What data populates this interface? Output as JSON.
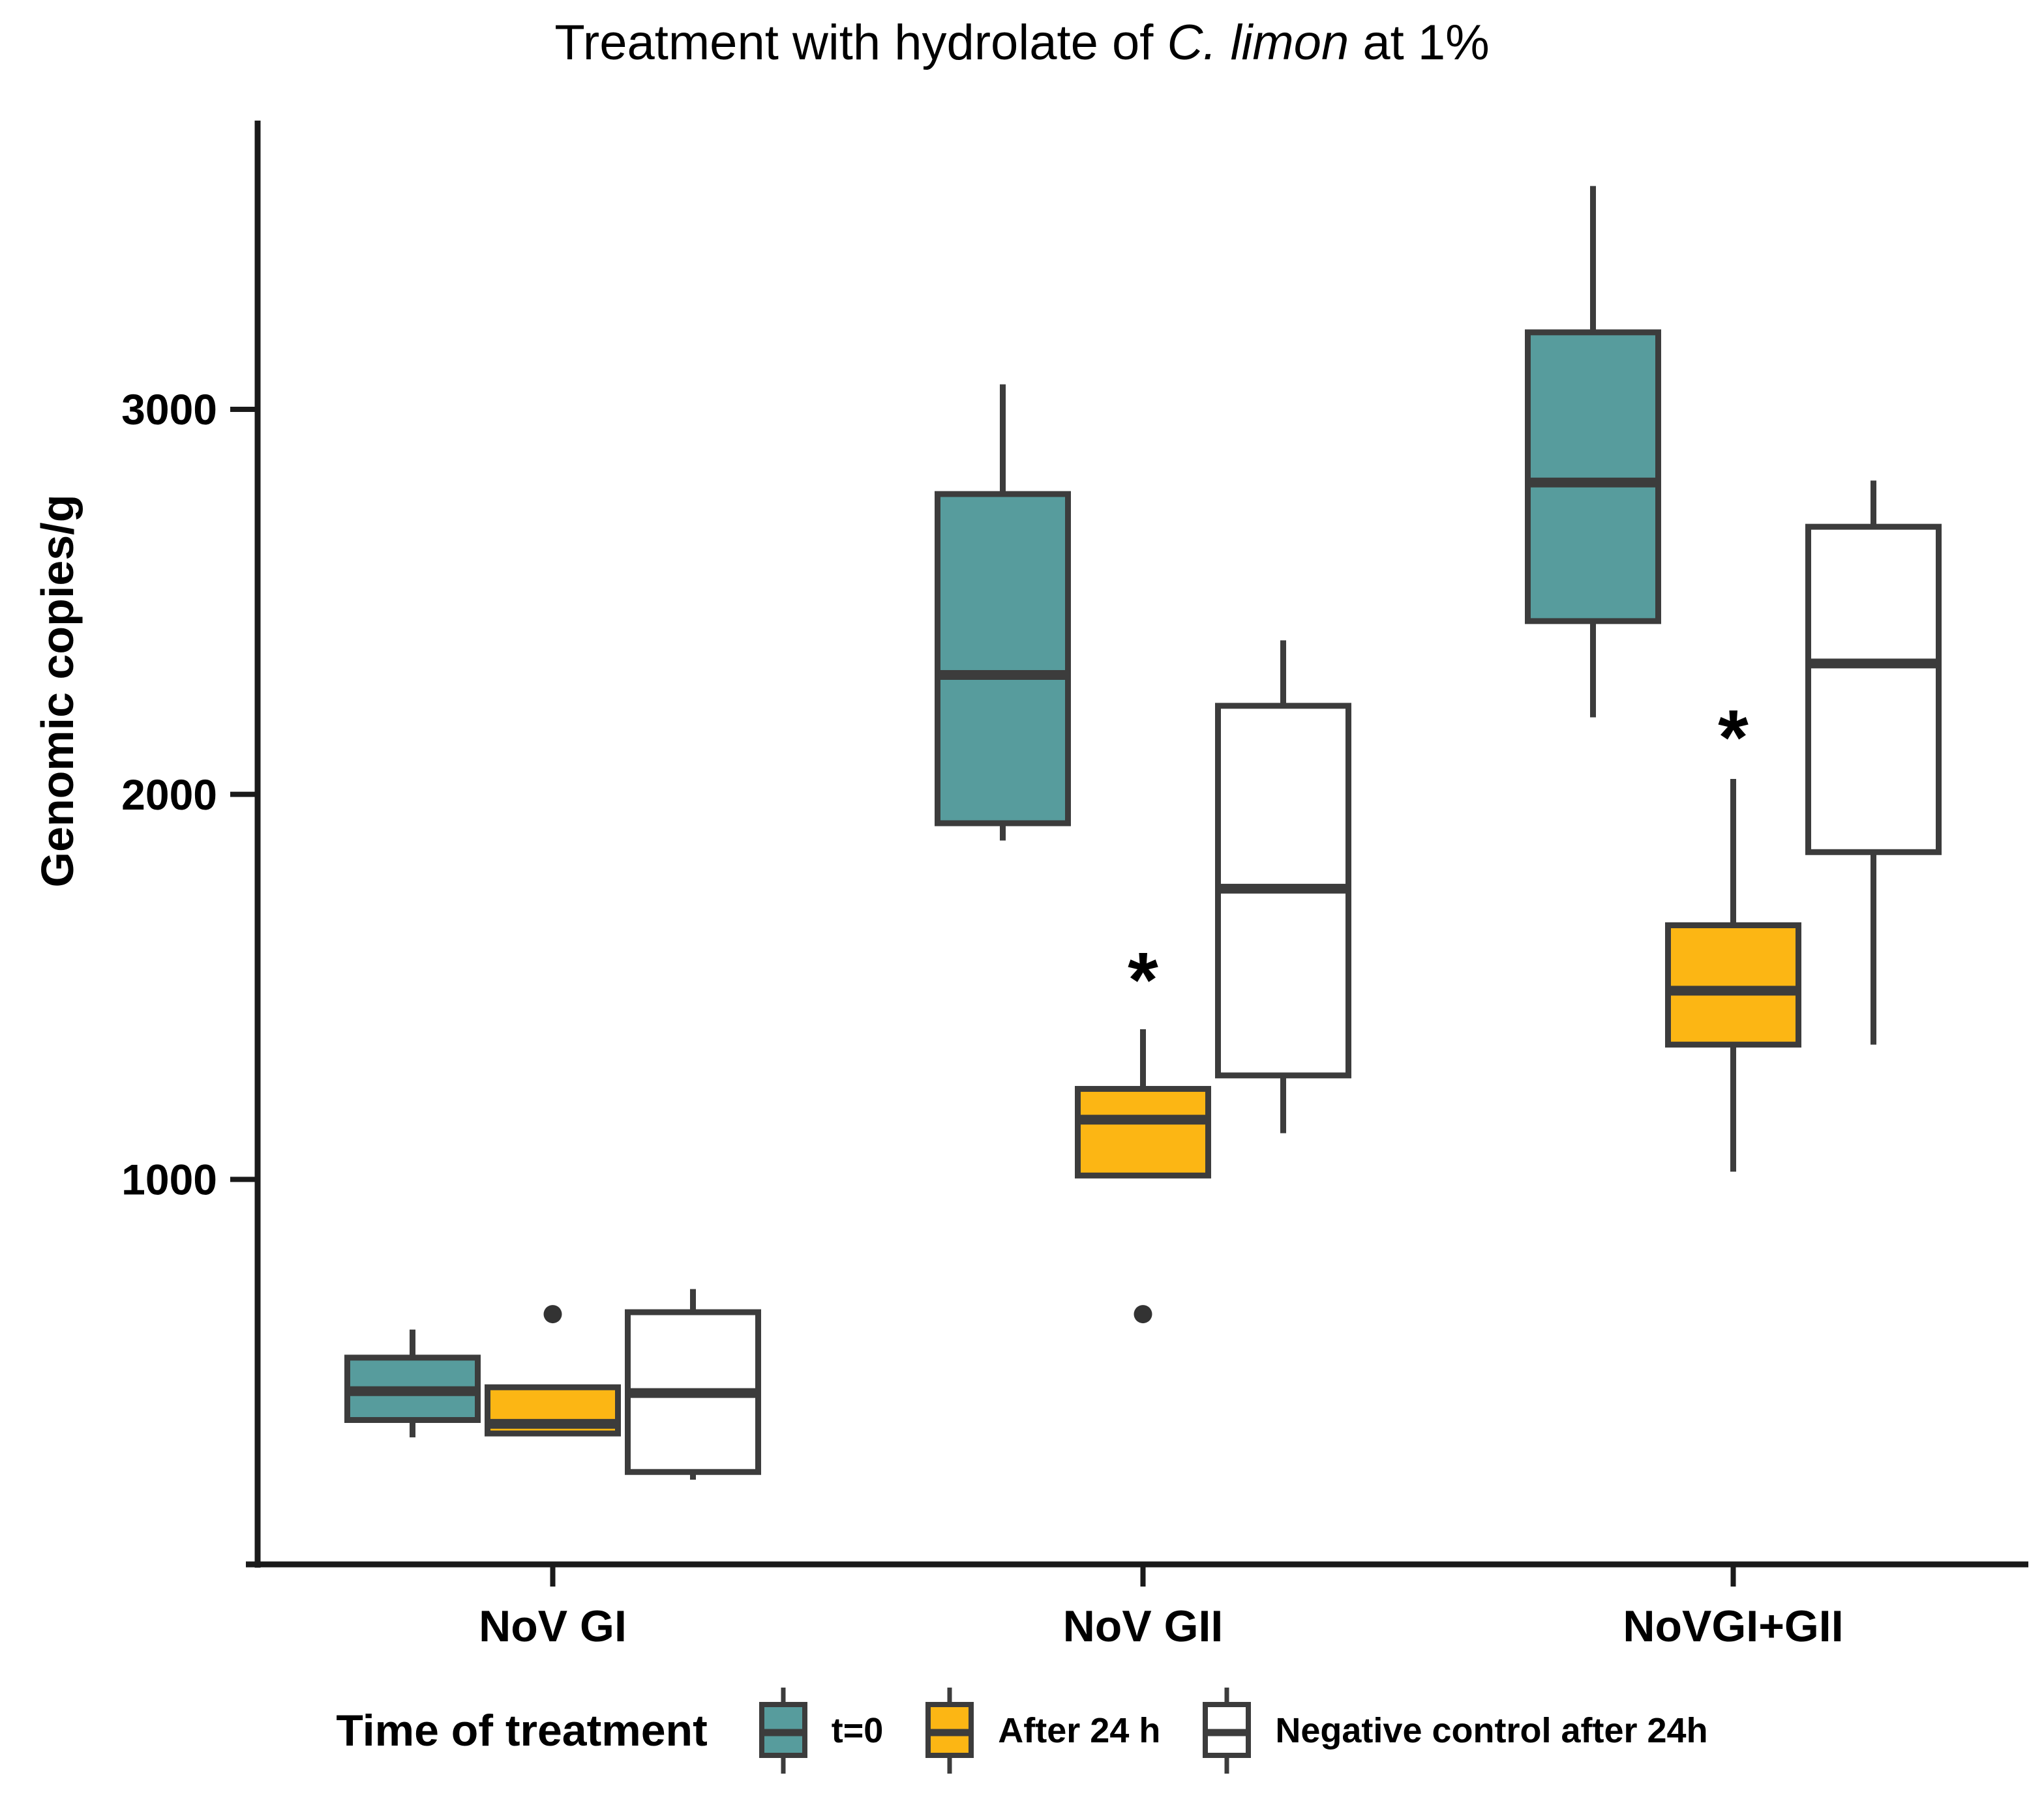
{
  "title": {
    "prefix": "Treatment with hydrolate of ",
    "italic": "C. limon",
    "suffix": " at 1%"
  },
  "y_axis": {
    "label": "Genomic copies/g",
    "ticks": [
      1000,
      2000,
      3000
    ]
  },
  "x_axis": {
    "categories": [
      "NoV GI",
      "NoV GII",
      "NoVGI+GII"
    ]
  },
  "legend": {
    "title": "Time of treatment",
    "entries": [
      {
        "label": "t=0",
        "color": "#579c9d"
      },
      {
        "label": "After 24 h",
        "color": "#fcb614"
      },
      {
        "label": "Negative control after 24h",
        "color": "#ffffff"
      }
    ]
  },
  "colors": {
    "teal": "#579c9d",
    "orange": "#fcb614",
    "white": "#ffffff",
    "box_border": "#3c3c3c",
    "axis": "#1a1a1a",
    "outlier": "#333333"
  },
  "chart_data": {
    "type": "boxplot",
    "title": "Treatment with hydrolate of C. limon at 1%",
    "ylabel": "Genomic copies/g",
    "xlabel": "",
    "ylim": [
      0,
      3750
    ],
    "y_ticks": [
      1000,
      2000,
      3000
    ],
    "grid": false,
    "legend_position": "bottom",
    "categories": [
      "NoV GI",
      "NoV GII",
      "NoVGI+GII"
    ],
    "series": [
      {
        "name": "t=0",
        "color": "#579c9d",
        "boxes": [
          {
            "category": "NoV GI",
            "whisker_low": 330,
            "q1": 375,
            "median": 450,
            "q3": 537,
            "whisker_high": 610,
            "outliers": []
          },
          {
            "category": "NoV GII",
            "whisker_low": 1880,
            "q1": 1925,
            "median": 2310,
            "q3": 2780,
            "whisker_high": 3065,
            "outliers": []
          },
          {
            "category": "NoVGI+GII",
            "whisker_low": 2200,
            "q1": 2450,
            "median": 2810,
            "q3": 3200,
            "whisker_high": 3580,
            "outliers": []
          }
        ]
      },
      {
        "name": "After 24 h",
        "color": "#fcb614",
        "boxes": [
          {
            "category": "NoV GI",
            "whisker_low": 340,
            "q1": 340,
            "median": 365,
            "q3": 460,
            "whisker_high": 460,
            "outliers": [
              650
            ]
          },
          {
            "category": "NoV GII",
            "whisker_low": 1010,
            "q1": 1010,
            "median": 1155,
            "q3": 1235,
            "whisker_high": 1390,
            "outliers": [
              650
            ]
          },
          {
            "category": "NoVGI+GII",
            "whisker_low": 1020,
            "q1": 1350,
            "median": 1490,
            "q3": 1660,
            "whisker_high": 2040,
            "outliers": []
          }
        ]
      },
      {
        "name": "Negative control after 24h",
        "color": "#ffffff",
        "boxes": [
          {
            "category": "NoV GI",
            "whisker_low": 220,
            "q1": 240,
            "median": 445,
            "q3": 655,
            "whisker_high": 715,
            "outliers": []
          },
          {
            "category": "NoV GII",
            "whisker_low": 1120,
            "q1": 1270,
            "median": 1755,
            "q3": 2230,
            "whisker_high": 2400,
            "outliers": []
          },
          {
            "category": "NoVGI+GII",
            "whisker_low": 1350,
            "q1": 1850,
            "median": 2340,
            "q3": 2695,
            "whisker_high": 2815,
            "outliers": []
          }
        ]
      }
    ],
    "annotations": [
      {
        "text": "*",
        "category": "NoV GII",
        "series": "After 24 h",
        "value": 1580
      },
      {
        "text": "*",
        "category": "NoVGI+GII",
        "series": "After 24 h",
        "value": 2210
      }
    ]
  }
}
